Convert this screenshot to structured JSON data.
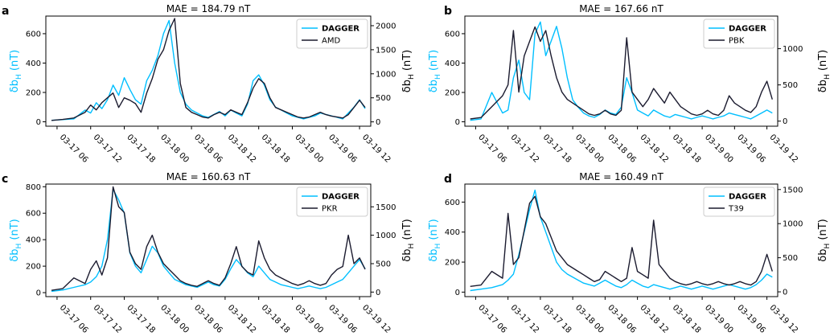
{
  "figure": {
    "shared_ylabel_left": "δb",
    "shared_ylabel_left_sub": "H",
    "shared_ylabel_unit": "(nT)",
    "left_axis_color": "#00BFFF",
    "right_axis_color": "#000000",
    "dagger_color": "#00BFFF",
    "obs_color": "#1b1b2f",
    "x_ticks": [
      "03-17 06",
      "03-17 12",
      "03-17 18",
      "03-18 00",
      "03-18 06",
      "03-18 12",
      "03-18 18",
      "03-19 00",
      "03-19 06",
      "03-19 12"
    ]
  },
  "chart_data": [
    {
      "type": "line",
      "letter": "a",
      "title": "MAE = 184.79 nT",
      "legend": [
        "DAGGER",
        "AMD"
      ],
      "legend_placement": "top-right",
      "x_hours": [
        0,
        6,
        12,
        18,
        24,
        30,
        36,
        42,
        48,
        54
      ],
      "left_ylim": [
        -30,
        720
      ],
      "left_ticks": [
        0,
        200,
        400,
        600
      ],
      "right_ylim": [
        -90,
        2200
      ],
      "right_ticks": [
        0,
        500,
        1000,
        1500,
        2000
      ],
      "series": [
        {
          "name": "DAGGER",
          "axis": "left",
          "x": [
            -1,
            1,
            3,
            5,
            6,
            7,
            8,
            9,
            10,
            11,
            12,
            13,
            14,
            15,
            16,
            17,
            18,
            19,
            20,
            21,
            22,
            23,
            24,
            25,
            26,
            27,
            28,
            29,
            30,
            31,
            32,
            33,
            34,
            35,
            36,
            37,
            38,
            39,
            40,
            41,
            42,
            43,
            44,
            45,
            46,
            47,
            48,
            49,
            50,
            51,
            52,
            53,
            54,
            55
          ],
          "y": [
            10,
            15,
            20,
            80,
            60,
            130,
            90,
            150,
            250,
            180,
            300,
            220,
            150,
            120,
            280,
            350,
            450,
            600,
            690,
            400,
            200,
            120,
            80,
            60,
            40,
            30,
            50,
            70,
            40,
            80,
            60,
            40,
            120,
            280,
            320,
            250,
            150,
            100,
            80,
            60,
            40,
            30,
            20,
            30,
            40,
            60,
            50,
            40,
            30,
            20,
            60,
            100,
            150,
            90
          ]
        },
        {
          "name": "AMD",
          "axis": "right",
          "x": [
            -1,
            1,
            3,
            5,
            6,
            7,
            8,
            9,
            10,
            11,
            12,
            13,
            14,
            15,
            16,
            17,
            18,
            19,
            20,
            21,
            22,
            23,
            24,
            25,
            26,
            27,
            28,
            29,
            30,
            31,
            32,
            33,
            34,
            35,
            36,
            37,
            38,
            39,
            40,
            41,
            42,
            43,
            44,
            45,
            46,
            47,
            48,
            49,
            50,
            51,
            52,
            53,
            54,
            55
          ],
          "y": [
            30,
            50,
            80,
            200,
            350,
            250,
            400,
            500,
            600,
            300,
            500,
            450,
            380,
            200,
            600,
            900,
            1300,
            1500,
            1900,
            2150,
            800,
            300,
            200,
            150,
            100,
            80,
            150,
            200,
            150,
            250,
            200,
            150,
            400,
            700,
            900,
            800,
            500,
            300,
            250,
            200,
            150,
            100,
            80,
            100,
            150,
            200,
            150,
            120,
            100,
            80,
            150,
            300,
            450,
            300
          ]
        }
      ]
    },
    {
      "type": "line",
      "letter": "b",
      "title": "MAE = 167.66 nT",
      "legend": [
        "DAGGER",
        "PBK"
      ],
      "legend_placement": "top-right",
      "x_hours": [
        0,
        6,
        12,
        18,
        24,
        30,
        36,
        42,
        48,
        54
      ],
      "left_ylim": [
        -30,
        720
      ],
      "left_ticks": [
        0,
        200,
        400,
        600
      ],
      "right_ylim": [
        -70,
        1450
      ],
      "right_ticks": [
        0,
        500,
        1000
      ],
      "series": [
        {
          "name": "DAGGER",
          "axis": "left",
          "x": [
            -1,
            1,
            3,
            5,
            6,
            7,
            8,
            9,
            10,
            11,
            12,
            13,
            14,
            15,
            16,
            17,
            18,
            19,
            20,
            21,
            22,
            23,
            24,
            25,
            26,
            27,
            28,
            29,
            30,
            31,
            32,
            33,
            34,
            35,
            36,
            37,
            38,
            39,
            40,
            41,
            42,
            43,
            44,
            45,
            46,
            47,
            48,
            49,
            50,
            51,
            52,
            53,
            54,
            55
          ],
          "y": [
            10,
            20,
            200,
            60,
            80,
            300,
            420,
            200,
            150,
            600,
            680,
            450,
            550,
            650,
            500,
            300,
            150,
            100,
            60,
            40,
            30,
            50,
            80,
            60,
            50,
            100,
            300,
            200,
            80,
            60,
            40,
            80,
            60,
            40,
            30,
            50,
            40,
            30,
            20,
            30,
            40,
            30,
            20,
            30,
            40,
            60,
            50,
            40,
            30,
            20,
            40,
            60,
            80,
            60
          ]
        },
        {
          "name": "PBK",
          "axis": "right",
          "x": [
            -1,
            1,
            3,
            5,
            6,
            7,
            8,
            9,
            10,
            11,
            12,
            13,
            14,
            15,
            16,
            17,
            18,
            19,
            20,
            21,
            22,
            23,
            24,
            25,
            26,
            27,
            28,
            29,
            30,
            31,
            32,
            33,
            34,
            35,
            36,
            37,
            38,
            39,
            40,
            41,
            42,
            43,
            44,
            45,
            46,
            47,
            48,
            49,
            50,
            51,
            52,
            53,
            54,
            55
          ],
          "y": [
            30,
            50,
            200,
            350,
            500,
            1250,
            400,
            900,
            1100,
            1300,
            1100,
            1250,
            900,
            600,
            400,
            300,
            250,
            200,
            150,
            100,
            80,
            100,
            150,
            100,
            80,
            150,
            1150,
            400,
            300,
            200,
            300,
            450,
            350,
            250,
            400,
            300,
            200,
            150,
            100,
            80,
            100,
            150,
            100,
            80,
            150,
            350,
            250,
            200,
            150,
            120,
            200,
            400,
            550,
            300
          ]
        }
      ]
    },
    {
      "type": "line",
      "letter": "c",
      "title": "MAE = 160.63 nT",
      "legend": [
        "DAGGER",
        "PKR"
      ],
      "legend_placement": "top-right",
      "x_hours": [
        0,
        6,
        12,
        18,
        24,
        30,
        36,
        42,
        48,
        54
      ],
      "left_ylim": [
        -30,
        820
      ],
      "left_ticks": [
        0,
        200,
        400,
        600,
        800
      ],
      "right_ylim": [
        -80,
        1900
      ],
      "right_ticks": [
        0,
        500,
        1000,
        1500
      ],
      "series": [
        {
          "name": "DAGGER",
          "axis": "left",
          "x": [
            -1,
            1,
            3,
            5,
            6,
            7,
            8,
            9,
            10,
            11,
            12,
            13,
            14,
            15,
            16,
            17,
            18,
            19,
            20,
            21,
            22,
            23,
            24,
            25,
            26,
            27,
            28,
            29,
            30,
            31,
            32,
            33,
            34,
            35,
            36,
            37,
            38,
            39,
            40,
            41,
            42,
            43,
            44,
            45,
            46,
            47,
            48,
            49,
            50,
            51,
            52,
            53,
            54,
            55
          ],
          "y": [
            10,
            20,
            40,
            60,
            80,
            120,
            200,
            400,
            780,
            700,
            600,
            300,
            200,
            150,
            250,
            350,
            300,
            200,
            150,
            100,
            80,
            60,
            50,
            40,
            60,
            80,
            60,
            50,
            100,
            180,
            250,
            200,
            150,
            120,
            200,
            150,
            100,
            80,
            60,
            50,
            40,
            30,
            40,
            50,
            40,
            30,
            40,
            60,
            80,
            100,
            150,
            200,
            250,
            180
          ]
        },
        {
          "name": "PKR",
          "axis": "right",
          "x": [
            -1,
            1,
            3,
            5,
            6,
            7,
            8,
            9,
            10,
            11,
            12,
            13,
            14,
            15,
            16,
            17,
            18,
            19,
            20,
            21,
            22,
            23,
            24,
            25,
            26,
            27,
            28,
            29,
            30,
            31,
            32,
            33,
            34,
            35,
            36,
            37,
            38,
            39,
            40,
            41,
            42,
            43,
            44,
            45,
            46,
            47,
            48,
            49,
            50,
            51,
            52,
            53,
            54,
            55
          ],
          "y": [
            30,
            60,
            250,
            150,
            400,
            550,
            300,
            600,
            1850,
            1500,
            1400,
            700,
            500,
            400,
            800,
            1000,
            700,
            500,
            400,
            300,
            200,
            150,
            120,
            100,
            150,
            200,
            150,
            120,
            250,
            500,
            800,
            450,
            350,
            300,
            900,
            600,
            400,
            300,
            250,
            200,
            150,
            120,
            150,
            200,
            150,
            120,
            150,
            300,
            400,
            450,
            1000,
            500,
            600,
            400
          ]
        }
      ]
    },
    {
      "type": "line",
      "letter": "d",
      "title": "MAE = 160.49 nT",
      "legend": [
        "DAGGER",
        "T39"
      ],
      "legend_placement": "top-right",
      "x_hours": [
        0,
        6,
        12,
        18,
        24,
        30,
        36,
        42,
        48,
        54
      ],
      "left_ylim": [
        -30,
        720
      ],
      "left_ticks": [
        0,
        200,
        400,
        600
      ],
      "right_ylim": [
        -70,
        1580
      ],
      "right_ticks": [
        0,
        500,
        1000,
        1500
      ],
      "series": [
        {
          "name": "DAGGER",
          "axis": "left",
          "x": [
            -1,
            1,
            3,
            5,
            6,
            7,
            8,
            9,
            10,
            11,
            12,
            13,
            14,
            15,
            16,
            17,
            18,
            19,
            20,
            21,
            22,
            23,
            24,
            25,
            26,
            27,
            28,
            29,
            30,
            31,
            32,
            33,
            34,
            35,
            36,
            37,
            38,
            39,
            40,
            41,
            42,
            43,
            44,
            45,
            46,
            47,
            48,
            49,
            50,
            51,
            52,
            53,
            54,
            55
          ],
          "y": [
            10,
            20,
            30,
            50,
            80,
            120,
            250,
            400,
            550,
            680,
            500,
            400,
            300,
            200,
            150,
            120,
            100,
            80,
            60,
            50,
            40,
            60,
            80,
            60,
            40,
            30,
            50,
            80,
            60,
            40,
            30,
            50,
            40,
            30,
            20,
            30,
            40,
            30,
            20,
            30,
            40,
            30,
            20,
            30,
            40,
            50,
            40,
            30,
            20,
            30,
            50,
            80,
            120,
            100
          ]
        },
        {
          "name": "T39",
          "axis": "right",
          "x": [
            -1,
            1,
            3,
            5,
            6,
            7,
            8,
            9,
            10,
            11,
            12,
            13,
            14,
            15,
            16,
            17,
            18,
            19,
            20,
            21,
            22,
            23,
            24,
            25,
            26,
            27,
            28,
            29,
            30,
            31,
            32,
            33,
            34,
            35,
            36,
            37,
            38,
            39,
            40,
            41,
            42,
            43,
            44,
            45,
            46,
            47,
            48,
            49,
            50,
            51,
            52,
            53,
            54,
            55
          ],
          "y": [
            80,
            100,
            300,
            200,
            1150,
            400,
            500,
            900,
            1300,
            1400,
            1100,
            1000,
            800,
            600,
            500,
            400,
            350,
            300,
            250,
            200,
            150,
            180,
            300,
            250,
            200,
            150,
            200,
            650,
            300,
            250,
            200,
            1050,
            400,
            300,
            200,
            150,
            120,
            100,
            120,
            150,
            120,
            100,
            120,
            150,
            120,
            100,
            120,
            150,
            120,
            100,
            150,
            300,
            550,
            300
          ]
        }
      ]
    }
  ]
}
